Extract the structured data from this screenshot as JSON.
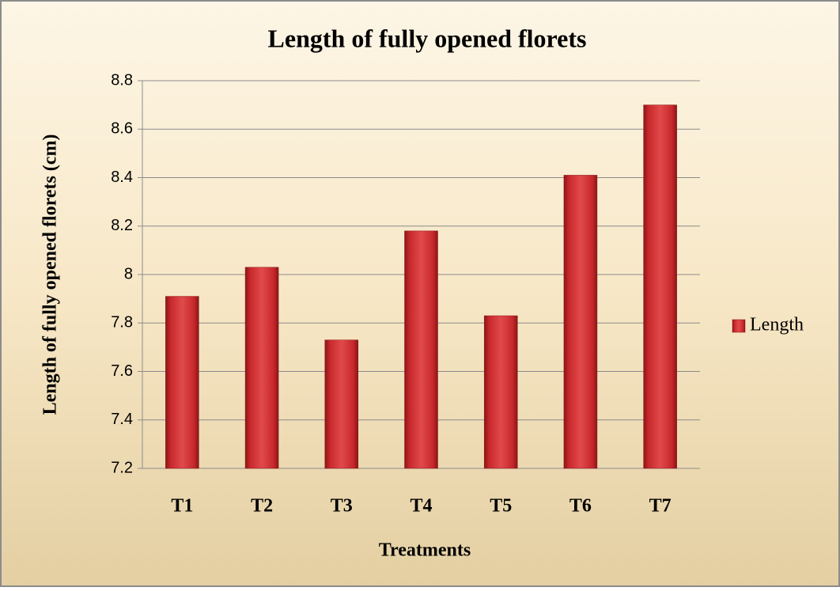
{
  "chart_data": {
    "type": "bar",
    "title": "Length of fully opened florets",
    "x_label": "Treatments",
    "y_label": "Length of fully opened florets (cm)",
    "categories": [
      "T1",
      "T2",
      "T3",
      "T4",
      "T5",
      "T6",
      "T7"
    ],
    "series": [
      {
        "name": "Length",
        "color": "#c8282c",
        "values": [
          7.91,
          8.03,
          7.73,
          8.18,
          7.83,
          8.41,
          8.7
        ]
      }
    ],
    "ylim": [
      7.2,
      8.8
    ],
    "yticks": [
      7.2,
      7.4,
      7.6,
      7.8,
      8,
      8.2,
      8.4,
      8.6,
      8.8
    ],
    "grid": true,
    "legend": "right"
  }
}
